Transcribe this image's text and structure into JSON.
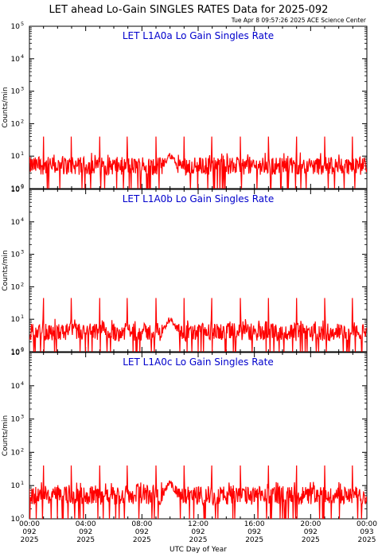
{
  "header": {
    "title": "LET ahead Lo-Gain SINGLES RATES Data for 2025-092",
    "timestamp": "Tue Apr  8 09:57:26 2025 ACE Science Center"
  },
  "chart_data": {
    "type": "line",
    "xlabel": "UTC Day of Year",
    "x_ticks": [
      {
        "time": "00:00",
        "doy": "092",
        "year": "2025"
      },
      {
        "time": "04:00",
        "doy": "092",
        "year": "2025"
      },
      {
        "time": "08:00",
        "doy": "092",
        "year": "2025"
      },
      {
        "time": "12:00",
        "doy": "092",
        "year": "2025"
      },
      {
        "time": "16:00",
        "doy": "092",
        "year": "2025"
      },
      {
        "time": "20:00",
        "doy": "092",
        "year": "2025"
      },
      {
        "time": "00:00",
        "doy": "093",
        "year": "2025"
      }
    ],
    "xlim_hours": [
      0,
      24
    ],
    "y_scale": "log",
    "ylim": [
      1,
      100000
    ],
    "y_tick_exponents": [
      "0",
      "1",
      "2",
      "3",
      "4",
      "5"
    ],
    "line_color": "#ff0000",
    "panels": [
      {
        "title": "LET L1A0a Lo Gain Singles Rate",
        "ylabel": "Counts/min",
        "baseline": 5,
        "spike_hours": [
          1.0,
          2.97,
          5.0,
          6.95,
          9.0,
          11.0,
          12.97,
          15.0,
          17.0,
          19.0,
          21.0,
          22.97
        ],
        "spike_values": [
          40,
          40,
          40,
          40,
          40,
          40,
          40,
          40,
          40,
          40,
          40,
          40
        ],
        "bump_hour": 10.0,
        "bump_value": 12
      },
      {
        "title": "LET L1A0b Lo Gain Singles Rate",
        "ylabel": "Counts/min",
        "baseline": 4,
        "spike_hours": [
          1.0,
          2.97,
          5.0,
          6.95,
          9.0,
          11.0,
          12.97,
          15.0,
          17.0,
          19.0,
          21.0,
          22.97
        ],
        "spike_values": [
          45,
          45,
          45,
          45,
          45,
          45,
          45,
          45,
          45,
          45,
          45,
          45
        ],
        "bump_hour": 10.0,
        "bump_value": 12
      },
      {
        "title": "LET L1A0c Lo Gain Singles Rate",
        "ylabel": "Counts/min",
        "baseline": 5,
        "spike_hours": [
          1.0,
          2.97,
          5.0,
          6.95,
          9.0,
          11.0,
          12.97,
          15.0,
          17.0,
          19.0,
          21.0,
          22.97
        ],
        "spike_values": [
          40,
          40,
          40,
          40,
          40,
          40,
          40,
          40,
          40,
          40,
          40,
          40
        ],
        "bump_hour": 10.0,
        "bump_value": 14
      }
    ]
  }
}
